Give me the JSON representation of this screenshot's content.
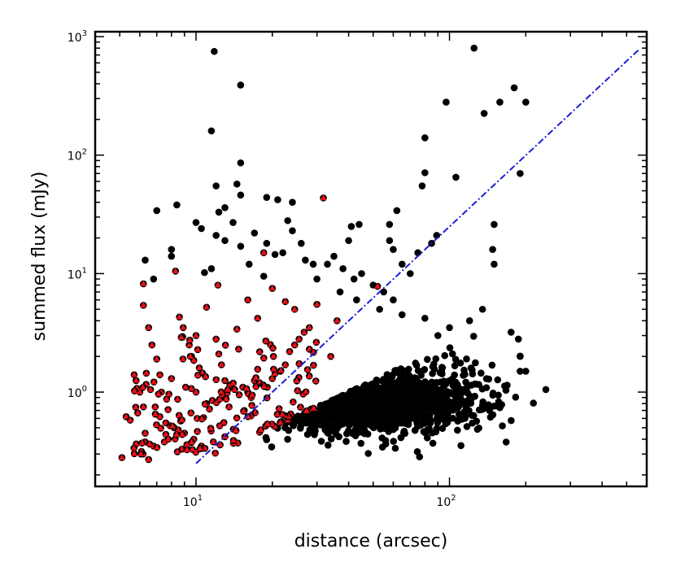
{
  "chart_data": {
    "type": "scatter",
    "xlabel": "distance (arcsec)",
    "ylabel": "summed flux (mJy)",
    "xscale": "log",
    "yscale": "log",
    "xlim": [
      4.0,
      600.0
    ],
    "ylim": [
      0.16,
      1100.0
    ],
    "x_ticks": [
      {
        "value": 10,
        "base": "10",
        "exp": "1"
      },
      {
        "value": 100,
        "base": "10",
        "exp": "2"
      }
    ],
    "y_ticks": [
      {
        "value": 1,
        "base": "10",
        "exp": "0"
      },
      {
        "value": 10,
        "base": "10",
        "exp": "1"
      },
      {
        "value": 100,
        "base": "10",
        "exp": "2"
      },
      {
        "value": 1000,
        "base": "10",
        "exp": "3"
      }
    ],
    "grid": false,
    "series": [
      {
        "marker": "circle",
        "color": "#000000",
        "points": [
          [
            11.8,
            750
          ],
          [
            15,
            390
          ],
          [
            11.5,
            160
          ],
          [
            15,
            86
          ],
          [
            125,
            800
          ],
          [
            97,
            280
          ],
          [
            137,
            225
          ],
          [
            158,
            280
          ],
          [
            180,
            370
          ],
          [
            200,
            280
          ],
          [
            190,
            70
          ],
          [
            106,
            65
          ],
          [
            80,
            140
          ],
          [
            80,
            71
          ],
          [
            78,
            55
          ],
          [
            150,
            26
          ],
          [
            148,
            16
          ],
          [
            150,
            12
          ],
          [
            135,
            5
          ],
          [
            6.3,
            13
          ],
          [
            6.8,
            9
          ],
          [
            7,
            34
          ],
          [
            8.4,
            38
          ],
          [
            12,
            55
          ],
          [
            14.5,
            57
          ],
          [
            15,
            46
          ],
          [
            19,
            44
          ],
          [
            21,
            42
          ],
          [
            24,
            40
          ],
          [
            13,
            36
          ],
          [
            12.3,
            33
          ],
          [
            10,
            27
          ],
          [
            10.5,
            24
          ],
          [
            14,
            27
          ],
          [
            17,
            22
          ],
          [
            23,
            28
          ],
          [
            24,
            23
          ],
          [
            26,
            18
          ],
          [
            19,
            18
          ],
          [
            8,
            16
          ],
          [
            8,
            14
          ],
          [
            12,
            21
          ],
          [
            13,
            19
          ],
          [
            15,
            17
          ],
          [
            22,
            15
          ],
          [
            27,
            13
          ],
          [
            29,
            12
          ],
          [
            33,
            12
          ],
          [
            38,
            11
          ],
          [
            40,
            19
          ],
          [
            41,
            25
          ],
          [
            44,
            26
          ],
          [
            58,
            26
          ],
          [
            62,
            34
          ],
          [
            58,
            19
          ],
          [
            60,
            16
          ],
          [
            65,
            12
          ],
          [
            70,
            10
          ],
          [
            75,
            15
          ],
          [
            89,
            21
          ],
          [
            85,
            18
          ],
          [
            42,
            9
          ],
          [
            50,
            8
          ],
          [
            55,
            7
          ],
          [
            60,
            6
          ],
          [
            45,
            10
          ],
          [
            35,
            14
          ],
          [
            30,
            9
          ],
          [
            37,
            7
          ],
          [
            43,
            6
          ],
          [
            53,
            5
          ],
          [
            65,
            4.5
          ],
          [
            80,
            4.2
          ],
          [
            100,
            3.5
          ],
          [
            120,
            4
          ],
          [
            90,
            3
          ],
          [
            175,
            3.2
          ],
          [
            187,
            2.8
          ],
          [
            190,
            2
          ],
          [
            190,
            1.5
          ],
          [
            200,
            1.5
          ],
          [
            240,
            1.05
          ],
          [
            11.5,
            11
          ],
          [
            16.2,
            12
          ],
          [
            18.5,
            9.5
          ],
          [
            20.5,
            14.5
          ],
          [
            10.8,
            10.2
          ]
        ],
        "cloud": {
          "count": 1350,
          "seed": 7,
          "center_x": 45,
          "center_y": 0.72,
          "spread_x": 0.22,
          "spread_y": 0.16,
          "min_x": 12,
          "max_x": 230,
          "min_y": 0.24,
          "max_y": 4.0
        }
      },
      {
        "marker": "triangle-circle",
        "color": "#e8101a",
        "points": [
          [
            5.1,
            0.28
          ],
          [
            5.3,
            0.62
          ],
          [
            5.5,
            0.58
          ],
          [
            5.7,
            1.4
          ],
          [
            5.8,
            1.25
          ],
          [
            6.2,
            8.2
          ],
          [
            6.2,
            5.4
          ],
          [
            6.5,
            3.5
          ],
          [
            6.7,
            2.5
          ],
          [
            6.2,
            0.75
          ],
          [
            6.3,
            0.45
          ],
          [
            6.5,
            0.27
          ],
          [
            6.3,
            0.38
          ],
          [
            6.9,
            0.75
          ],
          [
            7.2,
            0.62
          ],
          [
            7.3,
            1.0
          ],
          [
            7.6,
            0.55
          ],
          [
            7.6,
            0.44
          ],
          [
            7.9,
            0.52
          ],
          [
            8.2,
            0.5
          ],
          [
            8.5,
            0.48
          ],
          [
            8.7,
            0.57
          ],
          [
            9.0,
            0.45
          ],
          [
            8.3,
            10.5
          ],
          [
            8.6,
            4.3
          ],
          [
            8.9,
            3.5
          ],
          [
            9.4,
            2.5
          ],
          [
            9.6,
            2.0
          ],
          [
            9.8,
            1.85
          ],
          [
            10.3,
            1.6
          ],
          [
            10.6,
            1.45
          ],
          [
            10.9,
            1.35
          ],
          [
            11.3,
            0.72
          ],
          [
            11.6,
            0.85
          ],
          [
            12.3,
            2.1
          ],
          [
            12.6,
            1.7
          ],
          [
            13.0,
            1.25
          ],
          [
            13.6,
            1.15
          ],
          [
            14.2,
            1.05
          ],
          [
            14.8,
            0.95
          ],
          [
            15.3,
            1.1
          ],
          [
            16.0,
            1.0
          ],
          [
            16.5,
            0.9
          ],
          [
            17.0,
            1.25
          ],
          [
            17.8,
            1.2
          ],
          [
            18.4,
            1.15
          ],
          [
            19.1,
            1.1
          ],
          [
            20.0,
            1.3
          ],
          [
            21.5,
            1.5
          ],
          [
            22.5,
            1.7
          ],
          [
            23.4,
            2.2
          ],
          [
            24.5,
            2.5
          ],
          [
            25.5,
            2.8
          ],
          [
            26.7,
            3.2
          ],
          [
            28.0,
            3.5
          ],
          [
            31.8,
            43.5
          ],
          [
            18.5,
            15
          ],
          [
            20.0,
            7.5
          ],
          [
            16.0,
            6.0
          ],
          [
            12.2,
            8.0
          ],
          [
            11.0,
            5.2
          ],
          [
            22.5,
            5.8
          ],
          [
            24.5,
            5.0
          ],
          [
            30.0,
            5.5
          ],
          [
            36.0,
            4.0
          ],
          [
            52.0,
            7.8
          ],
          [
            28.0,
            2.3
          ],
          [
            34.0,
            2.0
          ],
          [
            10.0,
            3.0
          ],
          [
            12.0,
            2.8
          ],
          [
            14.5,
            3.4
          ],
          [
            17.5,
            4.2
          ],
          [
            20.2,
            2.0
          ],
          [
            9.5,
            2.0
          ],
          [
            10.1,
            0.6
          ],
          [
            12.4,
            0.52
          ],
          [
            13.0,
            0.42
          ],
          [
            11.7,
            0.38
          ],
          [
            10.5,
            0.35
          ],
          [
            9.8,
            0.4
          ],
          [
            9.2,
            0.36
          ],
          [
            8.8,
            0.33
          ],
          [
            7.5,
            0.38
          ],
          [
            6.8,
            0.35
          ],
          [
            7.2,
            1.4
          ],
          [
            7.0,
            1.9
          ],
          [
            8.0,
            1.3
          ],
          [
            9.1,
            1.1
          ],
          [
            10.0,
            1.0
          ],
          [
            11.0,
            0.8
          ],
          [
            13.5,
            0.75
          ],
          [
            15.5,
            0.7
          ],
          [
            6.0,
            1.0
          ]
        ],
        "cloud": {
          "count": 130,
          "seed": 11,
          "x_min": 5.5,
          "x_max": 30,
          "y_max": 3.0
        }
      },
      {
        "marker": "dashed-line",
        "color": "#1c1cd6",
        "points": [
          [
            10,
            0.25
          ],
          [
            560,
            780
          ]
        ]
      }
    ]
  }
}
